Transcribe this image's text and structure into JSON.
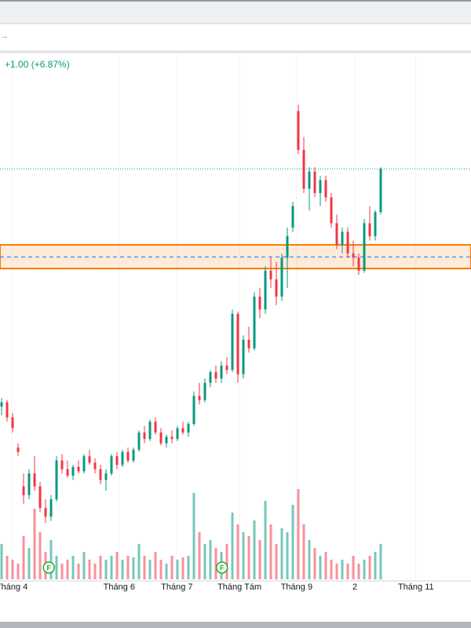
{
  "toolbar": {
    "icon": "→"
  },
  "chart_data": {
    "type": "candlestick",
    "change": "+1.00 (+6.87%)",
    "up_color": "#089981",
    "down_color": "#f23645",
    "ylim": [
      6.01,
      18.11
    ],
    "xlim": [
      -0.29,
      85.43
    ],
    "xticks": [
      {
        "value": 1.86,
        "label": "Tháng 4"
      },
      {
        "value": 21.4,
        "label": "Tháng 6"
      },
      {
        "value": 31.9,
        "label": "Tháng 7"
      },
      {
        "value": 43.3,
        "label": "Tháng Tám"
      },
      {
        "value": 53.7,
        "label": "Tháng 9"
      },
      {
        "value": 64.3,
        "label": "2"
      },
      {
        "value": 75.4,
        "label": "Tháng 11"
      }
    ],
    "grid": true,
    "zone": {
      "top": 13.8,
      "bottom": 13.25,
      "mid": 13.52,
      "color": "#f57c00"
    },
    "last_price_line": 15.56,
    "events": [
      {
        "value": 8.6,
        "label": "F"
      },
      {
        "value": 40.1,
        "label": "F"
      }
    ],
    "candles": [
      [
        10.05,
        10.25,
        9.85,
        10.15
      ],
      [
        10.15,
        10.2,
        9.7,
        9.8
      ],
      [
        9.8,
        9.9,
        9.45,
        9.55
      ],
      [
        9.1,
        9.2,
        8.9,
        9.0
      ],
      [
        8.2,
        8.5,
        7.8,
        8.0
      ],
      [
        8.0,
        8.6,
        7.9,
        8.5
      ],
      [
        8.5,
        8.9,
        8.1,
        8.2
      ],
      [
        8.2,
        8.3,
        7.6,
        7.7
      ],
      [
        7.7,
        7.9,
        7.35,
        7.5
      ],
      [
        7.5,
        8.0,
        7.4,
        7.9
      ],
      [
        7.9,
        8.9,
        7.85,
        8.8
      ],
      [
        8.8,
        8.95,
        8.5,
        8.6
      ],
      [
        8.6,
        8.8,
        8.4,
        8.45
      ],
      [
        8.45,
        8.7,
        8.35,
        8.65
      ],
      [
        8.65,
        8.8,
        8.5,
        8.55
      ],
      [
        8.55,
        8.95,
        8.5,
        8.9
      ],
      [
        8.9,
        9.05,
        8.7,
        8.75
      ],
      [
        8.75,
        8.85,
        8.5,
        8.6
      ],
      [
        8.6,
        8.7,
        8.25,
        8.35
      ],
      [
        8.35,
        8.6,
        8.1,
        8.5
      ],
      [
        8.5,
        8.95,
        8.45,
        8.9
      ],
      [
        8.9,
        9.0,
        8.6,
        8.7
      ],
      [
        8.7,
        9.05,
        8.65,
        9.0
      ],
      [
        9.0,
        9.1,
        8.75,
        8.8
      ],
      [
        8.8,
        9.1,
        8.75,
        9.05
      ],
      [
        9.05,
        9.5,
        9.0,
        9.45
      ],
      [
        9.45,
        9.6,
        9.2,
        9.3
      ],
      [
        9.3,
        9.75,
        9.25,
        9.7
      ],
      [
        9.7,
        9.8,
        9.4,
        9.45
      ],
      [
        9.45,
        9.55,
        9.15,
        9.2
      ],
      [
        9.2,
        9.4,
        9.1,
        9.35
      ],
      [
        9.35,
        9.5,
        9.2,
        9.3
      ],
      [
        9.3,
        9.6,
        9.25,
        9.55
      ],
      [
        9.55,
        9.7,
        9.4,
        9.45
      ],
      [
        9.45,
        9.7,
        9.35,
        9.65
      ],
      [
        9.65,
        10.4,
        9.6,
        10.3
      ],
      [
        10.3,
        10.6,
        10.1,
        10.2
      ],
      [
        10.2,
        10.7,
        10.15,
        10.6
      ],
      [
        10.6,
        10.9,
        10.5,
        10.85
      ],
      [
        10.85,
        11.0,
        10.6,
        10.7
      ],
      [
        10.7,
        11.1,
        10.6,
        11.0
      ],
      [
        11.0,
        11.2,
        10.8,
        10.9
      ],
      [
        10.9,
        12.3,
        10.85,
        12.2
      ],
      [
        12.2,
        12.25,
        10.6,
        10.8
      ],
      [
        10.8,
        11.7,
        10.7,
        11.6
      ],
      [
        11.6,
        11.9,
        11.3,
        11.4
      ],
      [
        11.4,
        12.7,
        11.35,
        12.6
      ],
      [
        12.6,
        12.8,
        12.1,
        12.3
      ],
      [
        12.3,
        13.3,
        12.2,
        13.2
      ],
      [
        13.2,
        13.5,
        12.8,
        13.0
      ],
      [
        13.0,
        13.4,
        12.4,
        12.6
      ],
      [
        12.6,
        13.6,
        12.5,
        13.5
      ],
      [
        13.5,
        14.2,
        12.8,
        14.0
      ],
      [
        14.2,
        14.8,
        14.1,
        14.7
      ],
      [
        16.9,
        17.05,
        15.9,
        16.0
      ],
      [
        16.0,
        16.3,
        15.0,
        15.1
      ],
      [
        15.1,
        15.6,
        14.6,
        15.5
      ],
      [
        15.5,
        15.6,
        14.9,
        15.0
      ],
      [
        15.0,
        15.4,
        14.7,
        15.3
      ],
      [
        15.3,
        15.4,
        14.8,
        14.9
      ],
      [
        14.9,
        15.0,
        14.2,
        14.3
      ],
      [
        14.3,
        14.5,
        13.7,
        13.8
      ],
      [
        13.8,
        14.2,
        13.6,
        14.1
      ],
      [
        14.1,
        14.2,
        13.5,
        13.6
      ],
      [
        13.6,
        13.9,
        13.3,
        13.5
      ],
      [
        13.5,
        13.6,
        13.1,
        13.2
      ],
      [
        13.2,
        14.4,
        13.15,
        14.3
      ],
      [
        14.3,
        14.7,
        13.9,
        14.0
      ],
      [
        14.0,
        14.6,
        13.9,
        14.56
      ],
      [
        14.56,
        15.6,
        14.5,
        15.56
      ]
    ],
    "volumes": [
      45,
      30,
      25,
      20,
      55,
      40,
      90,
      60,
      35,
      50,
      30,
      20,
      25,
      30,
      20,
      35,
      25,
      20,
      30,
      25,
      30,
      35,
      25,
      30,
      28,
      45,
      30,
      25,
      35,
      25,
      20,
      30,
      25,
      28,
      30,
      110,
      60,
      45,
      50,
      40,
      35,
      45,
      85,
      70,
      60,
      55,
      75,
      50,
      100,
      70,
      45,
      65,
      60,
      95,
      115,
      70,
      50,
      40,
      30,
      35,
      25,
      20,
      25,
      20,
      30,
      20,
      25,
      30,
      35,
      45
    ]
  }
}
